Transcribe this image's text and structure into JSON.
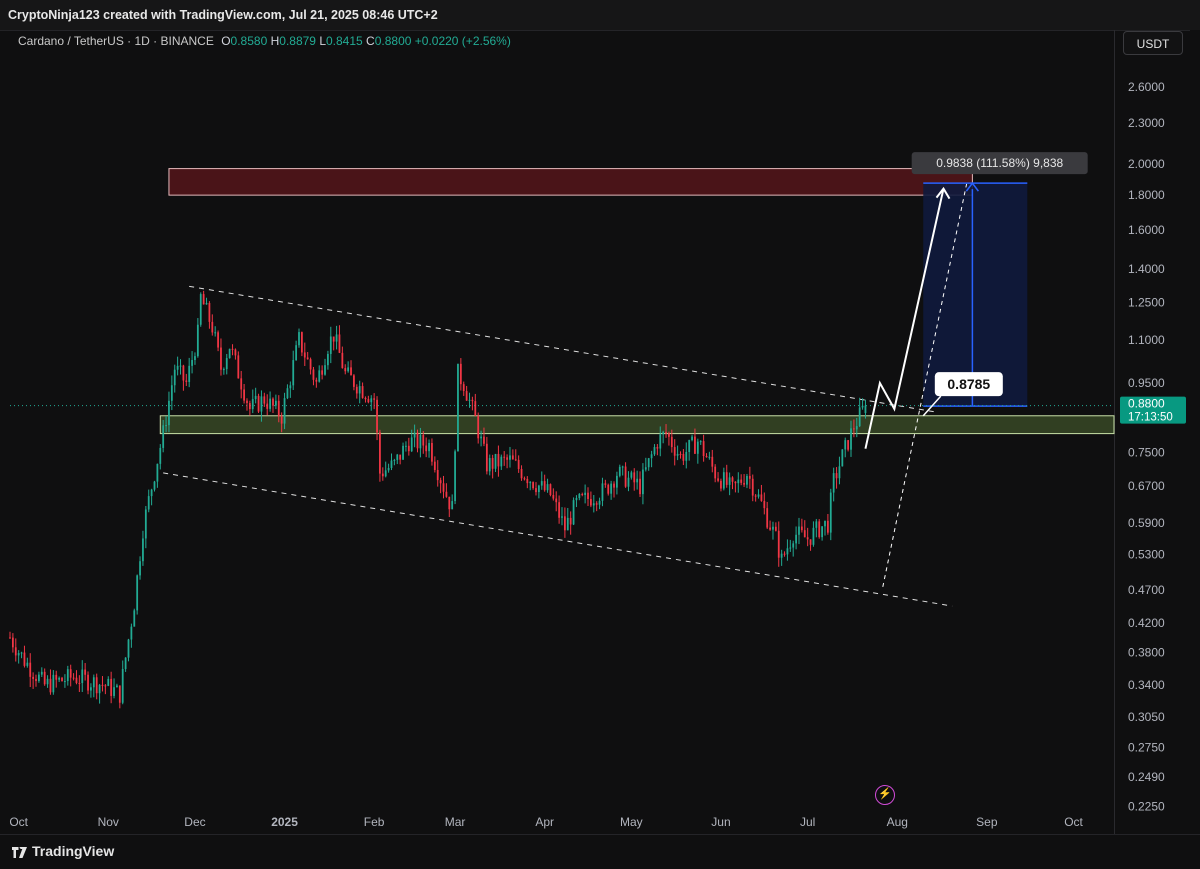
{
  "header": {
    "attribution": "CryptoNinja123 created with TradingView.com, Jul 21, 2025 08:46 UTC+2"
  },
  "legend": {
    "symbol": "Cardano / TetherUS · 1D · BINANCE",
    "open_label": "O",
    "open": "0.8580",
    "high_label": "H",
    "high": "0.8879",
    "low_label": "L",
    "low": "0.8415",
    "close_label": "C",
    "close": "0.8800",
    "change": "+0.0220 (+2.56%)"
  },
  "currency_button": "USDT",
  "brand": "TradingView",
  "colors": {
    "up": "#22ab94",
    "down": "#f23645",
    "background": "#0f0f10",
    "target_zone": "#4a1418",
    "support_zone": "#5a7a3a",
    "position_box": "#0f1a3d",
    "position_line": "#2962ff"
  },
  "chart_data": {
    "type": "candlestick",
    "y_scale": "log",
    "ylim": [
      0.215,
      2.85
    ],
    "y_ticks": [
      "2.6000",
      "2.3000",
      "2.0000",
      "1.8000",
      "1.6000",
      "1.4000",
      "1.2500",
      "1.1000",
      "0.9500",
      "0.7500",
      "0.6700",
      "0.5900",
      "0.5300",
      "0.4700",
      "0.4200",
      "0.3800",
      "0.3400",
      "0.3050",
      "0.2750",
      "0.2490",
      "0.2250"
    ],
    "x_ticks": [
      "Oct",
      "Nov",
      "Dec",
      "2025",
      "Feb",
      "Mar",
      "Apr",
      "May",
      "Jun",
      "Jul",
      "Aug",
      "Sep",
      "Oct"
    ],
    "x_tick_dates": [
      "2024-10-01",
      "2024-11-01",
      "2024-12-01",
      "2025-01-01",
      "2025-02-01",
      "2025-03-01",
      "2025-04-01",
      "2025-05-01",
      "2025-06-01",
      "2025-07-01",
      "2025-08-01",
      "2025-09-01",
      "2025-10-01"
    ],
    "x_range": [
      "2024-09-28",
      "2025-10-15"
    ],
    "last_price_label": "0.8800",
    "countdown_label": "17:13:50",
    "price_anchors": [
      [
        "2024-09-28",
        0.4
      ],
      [
        "2024-10-03",
        0.37
      ],
      [
        "2024-10-10",
        0.34
      ],
      [
        "2024-10-20",
        0.35
      ],
      [
        "2024-10-31",
        0.34
      ],
      [
        "2024-11-05",
        0.33
      ],
      [
        "2024-11-10",
        0.45
      ],
      [
        "2024-11-13",
        0.58
      ],
      [
        "2024-11-17",
        0.7
      ],
      [
        "2024-11-20",
        0.8
      ],
      [
        "2024-11-24",
        1.0
      ],
      [
        "2024-11-28",
        0.95
      ],
      [
        "2024-12-02",
        1.12
      ],
      [
        "2024-12-03",
        1.27
      ],
      [
        "2024-12-07",
        1.15
      ],
      [
        "2024-12-10",
        1.0
      ],
      [
        "2024-12-13",
        1.08
      ],
      [
        "2024-12-20",
        0.87
      ],
      [
        "2024-12-25",
        0.9
      ],
      [
        "2024-12-31",
        0.85
      ],
      [
        "2025-01-06",
        1.1
      ],
      [
        "2025-01-12",
        0.95
      ],
      [
        "2025-01-16",
        1.08
      ],
      [
        "2025-01-18",
        1.12
      ],
      [
        "2025-01-22",
        0.98
      ],
      [
        "2025-01-28",
        0.93
      ],
      [
        "2025-02-01",
        0.9
      ],
      [
        "2025-02-03",
        0.7
      ],
      [
        "2025-02-08",
        0.72
      ],
      [
        "2025-02-13",
        0.78
      ],
      [
        "2025-02-20",
        0.77
      ],
      [
        "2025-02-26",
        0.65
      ],
      [
        "2025-02-28",
        0.62
      ],
      [
        "2025-03-02",
        0.98
      ],
      [
        "2025-03-04",
        0.95
      ],
      [
        "2025-03-08",
        0.84
      ],
      [
        "2025-03-12",
        0.72
      ],
      [
        "2025-03-20",
        0.73
      ],
      [
        "2025-03-28",
        0.68
      ],
      [
        "2025-04-03",
        0.65
      ],
      [
        "2025-04-08",
        0.58
      ],
      [
        "2025-04-12",
        0.63
      ],
      [
        "2025-04-22",
        0.66
      ],
      [
        "2025-04-26",
        0.7
      ],
      [
        "2025-05-04",
        0.67
      ],
      [
        "2025-05-10",
        0.78
      ],
      [
        "2025-05-13",
        0.8
      ],
      [
        "2025-05-18",
        0.74
      ],
      [
        "2025-05-24",
        0.78
      ],
      [
        "2025-05-30",
        0.7
      ],
      [
        "2025-06-05",
        0.66
      ],
      [
        "2025-06-10",
        0.7
      ],
      [
        "2025-06-15",
        0.63
      ],
      [
        "2025-06-20",
        0.56
      ],
      [
        "2025-06-22",
        0.52
      ],
      [
        "2025-06-26",
        0.57
      ],
      [
        "2025-07-01",
        0.56
      ],
      [
        "2025-07-05",
        0.58
      ],
      [
        "2025-07-08",
        0.59
      ],
      [
        "2025-07-10",
        0.68
      ],
      [
        "2025-07-13",
        0.74
      ],
      [
        "2025-07-17",
        0.82
      ],
      [
        "2025-07-21",
        0.88
      ]
    ]
  },
  "annotations": {
    "measure_label": "0.9838 (111.58%) 9,838",
    "entry_label": "0.8785",
    "target_zone_price_range": [
      1.8,
      1.97
    ],
    "support_zone_price_range": [
      0.8,
      0.85
    ],
    "position_top_price": 1.875,
    "position_entry_price": 0.8785,
    "channel_upper": [
      [
        "2024-11-29",
        1.32
      ],
      [
        "2025-08-15",
        0.86
      ]
    ],
    "channel_lower": [
      [
        "2024-11-20",
        0.7
      ],
      [
        "2025-08-20",
        0.445
      ]
    ],
    "projection_path": [
      [
        "2025-07-21",
        0.76
      ],
      [
        "2025-07-26",
        0.95
      ],
      [
        "2025-07-31",
        0.87
      ],
      [
        "2025-08-17",
        1.84
      ]
    ],
    "dashed_projection": [
      [
        "2025-07-27",
        0.475
      ],
      [
        "2025-08-25",
        1.87
      ]
    ]
  }
}
